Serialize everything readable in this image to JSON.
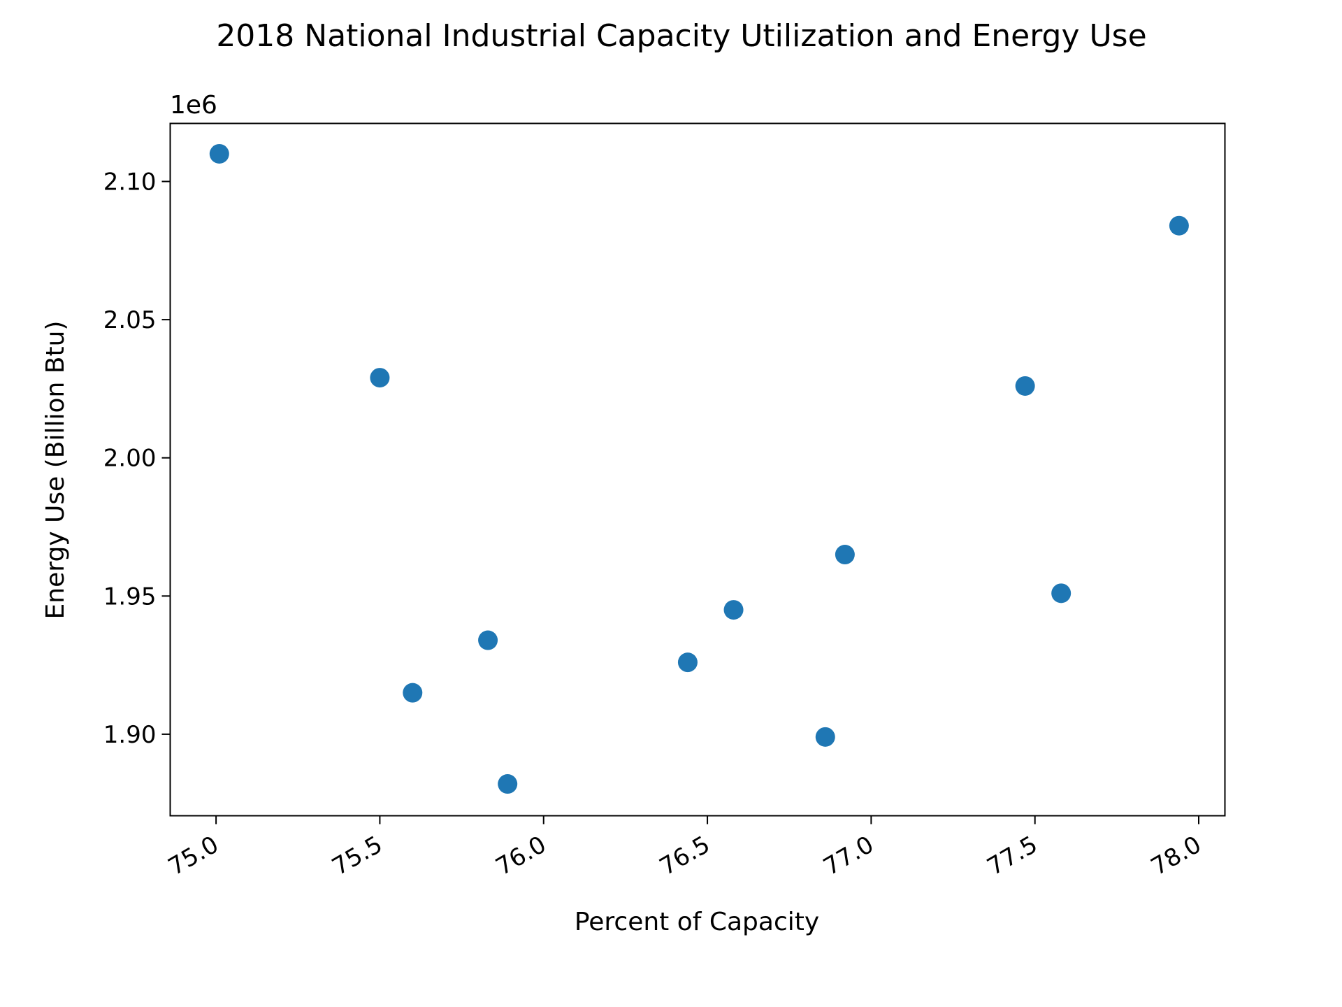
{
  "chart_data": {
    "type": "scatter",
    "title": "2018 National Industrial Capacity Utilization and Energy Use",
    "xlabel": "Percent of Capacity",
    "ylabel": "Energy Use (Billion Btu)",
    "y_offset_label": "1e6",
    "xlim": [
      74.86,
      78.08
    ],
    "ylim": [
      1.8705,
      2.121
    ],
    "x_ticks": [
      75.0,
      75.5,
      76.0,
      76.5,
      77.0,
      77.5,
      78.0
    ],
    "x_tick_labels": [
      "75.0",
      "75.5",
      "76.0",
      "76.5",
      "77.0",
      "77.5",
      "78.0"
    ],
    "y_ticks": [
      1.9,
      1.95,
      2.0,
      2.05,
      2.1
    ],
    "y_tick_labels": [
      "1.90",
      "1.95",
      "2.00",
      "2.05",
      "2.10"
    ],
    "x_tick_rotation": 30,
    "grid": false,
    "legend": "none",
    "series": [
      {
        "color": "#1f77b4",
        "x": [
          75.01,
          75.5,
          75.6,
          75.83,
          75.89,
          76.44,
          76.58,
          76.86,
          76.92,
          77.47,
          77.58,
          77.94
        ],
        "y": [
          2.11,
          2.029,
          1.915,
          1.934,
          1.882,
          1.926,
          1.945,
          1.899,
          1.965,
          2.026,
          1.951,
          2.084
        ]
      }
    ]
  }
}
